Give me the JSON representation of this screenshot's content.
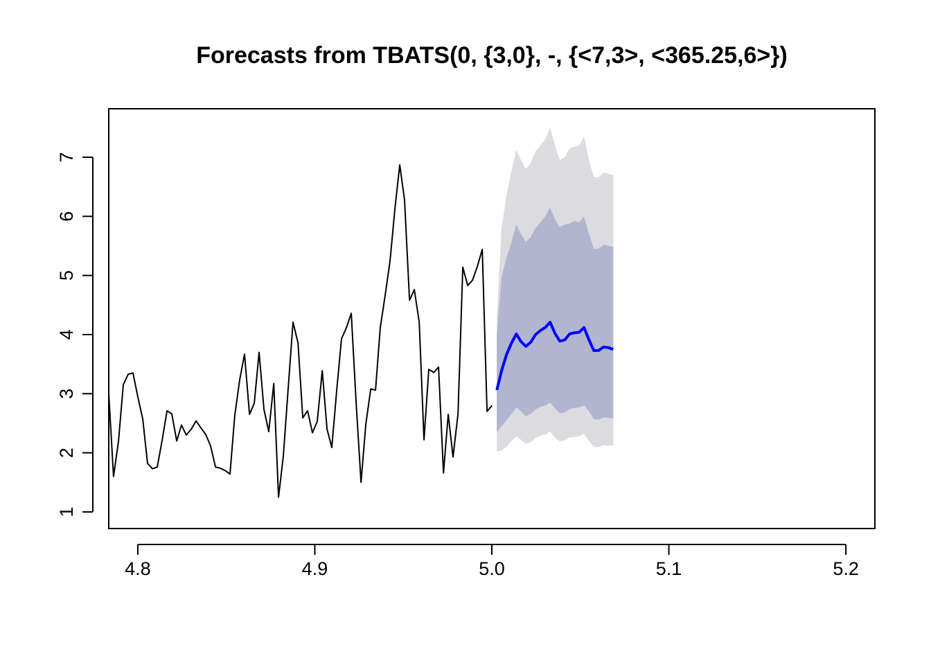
{
  "chart_data": {
    "type": "line",
    "title": "Forecasts from TBATS(0, {3,0}, -, {<7,3>, <365.25,6>})",
    "xlim": [
      4.7836,
      5.2164
    ],
    "ylim": [
      0.719,
      7.82
    ],
    "xticks": [
      4.8,
      4.9,
      {
        "value": 5,
        "label": "5.0"
      },
      5.1,
      5.2
    ],
    "yticks": [
      1,
      2,
      3,
      4,
      5,
      6,
      7
    ],
    "grid": false,
    "bands": [
      {
        "color": "#dbdbe0",
        "x": [
          5.0028,
          5.0055,
          5.0083,
          5.011,
          5.0138,
          5.0165,
          5.0192,
          5.022,
          5.0247,
          5.0275,
          5.0302,
          5.0329,
          5.0357,
          5.0384,
          5.0412,
          5.0439,
          5.0466,
          5.0494,
          5.0521,
          5.0549,
          5.0576,
          5.0603,
          5.0631,
          5.0658,
          5.0686
        ],
        "lower": [
          2.02,
          2.04,
          2.1,
          2.2,
          2.28,
          2.22,
          2.15,
          2.18,
          2.25,
          2.29,
          2.31,
          2.36,
          2.26,
          2.19,
          2.21,
          2.26,
          2.27,
          2.28,
          2.32,
          2.2,
          2.1,
          2.1,
          2.13,
          2.12,
          2.12
        ],
        "upper": [
          4.3,
          5.8,
          6.35,
          6.75,
          7.13,
          6.95,
          6.8,
          6.9,
          7.1,
          7.2,
          7.3,
          7.5,
          7.2,
          6.95,
          7.0,
          7.15,
          7.18,
          7.2,
          7.35,
          6.95,
          6.66,
          6.66,
          6.74,
          6.72,
          6.7
        ]
      },
      {
        "color": "#b1b5d0",
        "x": [
          5.0028,
          5.0055,
          5.0083,
          5.011,
          5.0138,
          5.0165,
          5.0192,
          5.022,
          5.0247,
          5.0275,
          5.0302,
          5.0329,
          5.0357,
          5.0384,
          5.0412,
          5.0439,
          5.0466,
          5.0494,
          5.0521,
          5.0549,
          5.0576,
          5.0603,
          5.0631,
          5.0658,
          5.0686
        ],
        "lower": [
          2.35,
          2.45,
          2.55,
          2.65,
          2.77,
          2.7,
          2.62,
          2.66,
          2.73,
          2.78,
          2.8,
          2.85,
          2.75,
          2.67,
          2.68,
          2.74,
          2.76,
          2.77,
          2.8,
          2.7,
          2.57,
          2.56,
          2.6,
          2.59,
          2.58
        ],
        "upper": [
          4.0,
          4.97,
          5.3,
          5.55,
          5.86,
          5.7,
          5.57,
          5.65,
          5.8,
          5.9,
          6.0,
          6.15,
          5.95,
          5.82,
          5.86,
          5.88,
          5.92,
          5.9,
          6.0,
          5.7,
          5.45,
          5.45,
          5.52,
          5.5,
          5.48
        ]
      }
    ],
    "series": [
      {
        "color": "#000000",
        "width": 2,
        "x": [
          4.7836,
          4.7863,
          4.7891,
          4.7918,
          4.7946,
          4.7973,
          4.8,
          4.8028,
          4.8055,
          4.8083,
          4.811,
          4.8137,
          4.8165,
          4.8192,
          4.822,
          4.8247,
          4.8274,
          4.8302,
          4.8329,
          4.8357,
          4.8384,
          4.8411,
          4.8439,
          4.8466,
          4.8494,
          4.8521,
          4.8548,
          4.8576,
          4.8603,
          4.8631,
          4.8658,
          4.8685,
          4.8713,
          4.874,
          4.8768,
          4.8795,
          4.8822,
          4.885,
          4.8877,
          4.8905,
          4.8932,
          4.8959,
          4.8987,
          4.9014,
          4.9042,
          4.9069,
          4.9096,
          4.9124,
          4.9151,
          4.9179,
          4.9206,
          4.9233,
          4.9261,
          4.9288,
          4.9316,
          4.9343,
          4.937,
          4.9398,
          4.9425,
          4.9453,
          4.948,
          4.9507,
          4.9535,
          4.9562,
          4.959,
          4.9617,
          4.9644,
          4.9672,
          4.9699,
          4.9727,
          4.9754,
          4.9781,
          4.9809,
          4.9836,
          4.9864,
          4.9891,
          4.9918,
          4.9946,
          4.9973,
          5.0001
        ],
        "values": [
          3.0,
          1.6,
          2.2,
          3.15,
          3.33,
          3.35,
          2.95,
          2.57,
          1.82,
          1.73,
          1.76,
          2.2,
          2.71,
          2.66,
          2.2,
          2.47,
          2.3,
          2.4,
          2.54,
          2.42,
          2.31,
          2.12,
          1.76,
          1.74,
          1.7,
          1.64,
          2.63,
          3.24,
          3.67,
          2.65,
          2.84,
          3.7,
          2.73,
          2.36,
          3.17,
          1.25,
          1.94,
          3.1,
          4.21,
          3.86,
          2.59,
          2.71,
          2.34,
          2.53,
          3.39,
          2.4,
          2.09,
          3.06,
          3.93,
          4.12,
          4.36,
          2.87,
          1.5,
          2.48,
          3.08,
          3.06,
          4.12,
          4.68,
          5.25,
          6.14,
          6.87,
          6.28,
          4.58,
          4.76,
          4.21,
          2.22,
          3.41,
          3.36,
          3.45,
          1.66,
          2.65,
          1.93,
          2.66,
          5.14,
          4.83,
          4.92,
          5.15,
          5.44,
          2.7,
          2.8
        ]
      },
      {
        "color": "#0000ff",
        "width": 4,
        "x": [
          5.0028,
          5.0055,
          5.0083,
          5.011,
          5.0138,
          5.0165,
          5.0192,
          5.022,
          5.0247,
          5.0275,
          5.0302,
          5.0329,
          5.0357,
          5.0384,
          5.0412,
          5.0439,
          5.0466,
          5.0494,
          5.0521,
          5.0549,
          5.0576,
          5.0603,
          5.0631,
          5.0658,
          5.0686
        ],
        "values": [
          3.06,
          3.39,
          3.66,
          3.85,
          4.01,
          3.88,
          3.8,
          3.87,
          4.0,
          4.07,
          4.12,
          4.21,
          4.02,
          3.89,
          3.91,
          4.01,
          4.03,
          4.04,
          4.12,
          3.91,
          3.73,
          3.73,
          3.79,
          3.78,
          3.75
        ]
      }
    ]
  }
}
